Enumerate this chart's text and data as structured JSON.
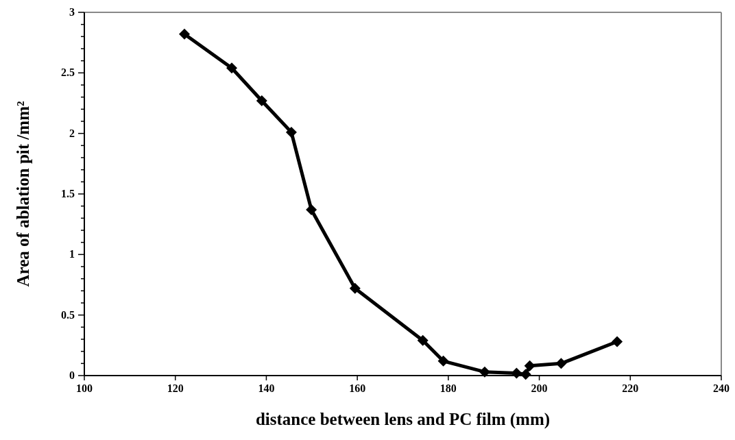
{
  "chart_data": {
    "type": "line",
    "xlabel": "distance between lens and PC film (mm)",
    "ylabel": "Area of ablation pit /mm²",
    "x": [
      122,
      132.4,
      139,
      145.5,
      149.9,
      159.5,
      174.4,
      178.9,
      188,
      195,
      197,
      197.9,
      204.8,
      217.1
    ],
    "series": [
      {
        "color": "#000000",
        "values": [
          2.82,
          2.54,
          2.27,
          2.01,
          1.37,
          0.72,
          0.29,
          0.12,
          0.03,
          0.02,
          0.01,
          0.08,
          0.1,
          0.28
        ]
      }
    ],
    "xlim": [
      100,
      240
    ],
    "xticks": [
      100,
      120,
      140,
      160,
      180,
      200,
      220,
      240
    ],
    "ylim": [
      0,
      3
    ],
    "yticks": [
      0,
      {
        "value": 0.1,
        "label": null
      },
      {
        "value": 0.2,
        "label": null
      },
      {
        "value": 0.3,
        "label": null
      },
      {
        "value": 0.4,
        "label": null
      },
      0.5,
      {
        "value": 0.6,
        "label": null
      },
      {
        "value": 0.7,
        "label": null
      },
      {
        "value": 0.8,
        "label": null
      },
      {
        "value": 0.9,
        "label": null
      },
      1,
      {
        "value": 1.1,
        "label": null
      },
      {
        "value": 1.2,
        "label": null
      },
      {
        "value": 1.3,
        "label": null
      },
      {
        "value": 1.4,
        "label": null
      },
      1.5,
      {
        "value": 1.6,
        "label": null
      },
      {
        "value": 1.7,
        "label": null
      },
      {
        "value": 1.8,
        "label": null
      },
      {
        "value": 1.9,
        "label": null
      },
      2,
      {
        "value": 2.1,
        "label": null
      },
      {
        "value": 2.2,
        "label": null
      },
      {
        "value": 2.3,
        "label": null
      },
      {
        "value": 2.4,
        "label": null
      },
      2.5,
      {
        "value": 2.6,
        "label": null
      },
      {
        "value": 2.7,
        "label": null
      },
      {
        "value": 2.8,
        "label": null
      },
      {
        "value": 2.9,
        "label": null
      },
      3
    ],
    "grid": false,
    "marker": "diamond",
    "line_style": "solid"
  }
}
